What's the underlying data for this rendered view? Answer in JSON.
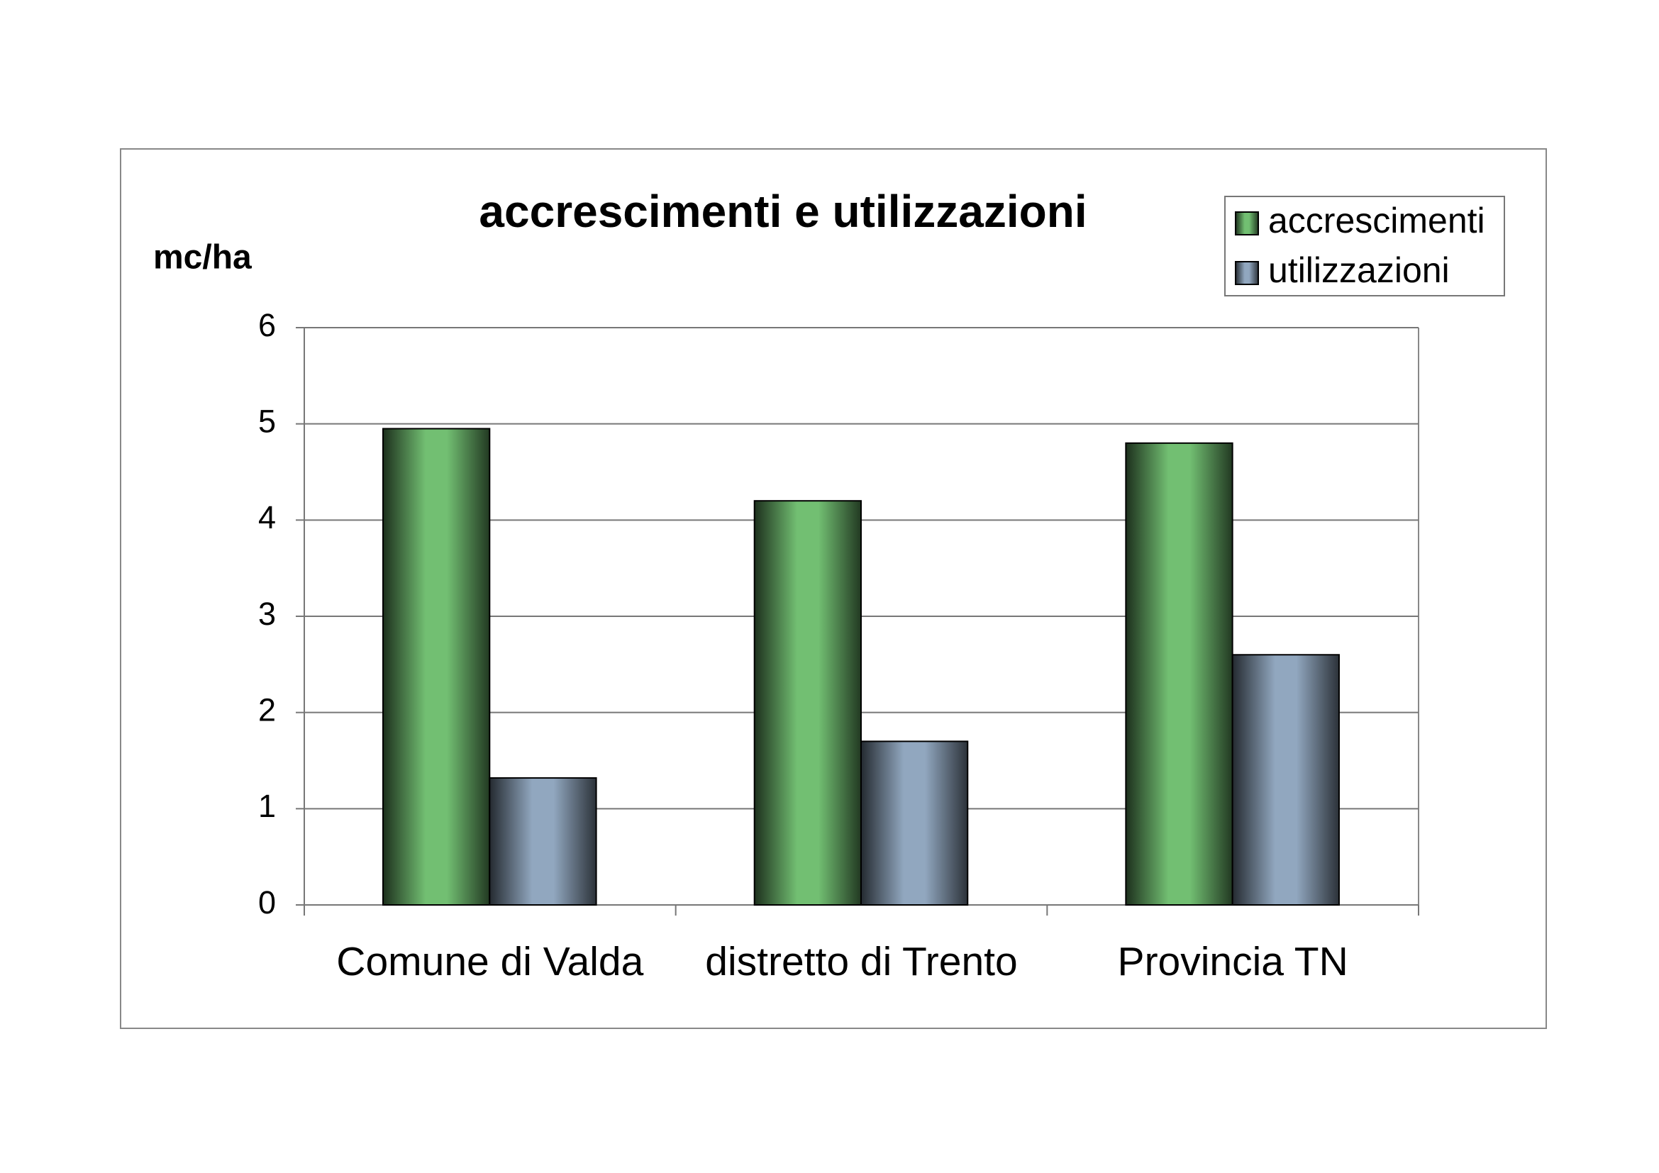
{
  "chart_data": {
    "type": "bar",
    "title": "accrescimenti e utilizzazioni",
    "y_label": "mc/ha",
    "categories": [
      "Comune di Valda",
      "distretto di Trento",
      "Provincia TN"
    ],
    "series": [
      {
        "name": "accrescimenti",
        "color": "#72bf72",
        "values": [
          4.95,
          4.2,
          4.8
        ]
      },
      {
        "name": "utilizzazioni",
        "color": "#91a7bf",
        "values": [
          1.32,
          1.7,
          2.6
        ]
      }
    ],
    "ylim": [
      0,
      6
    ],
    "yticks": [
      0,
      1,
      2,
      3,
      4,
      5,
      6
    ],
    "grid": true,
    "legend": "top-right"
  }
}
